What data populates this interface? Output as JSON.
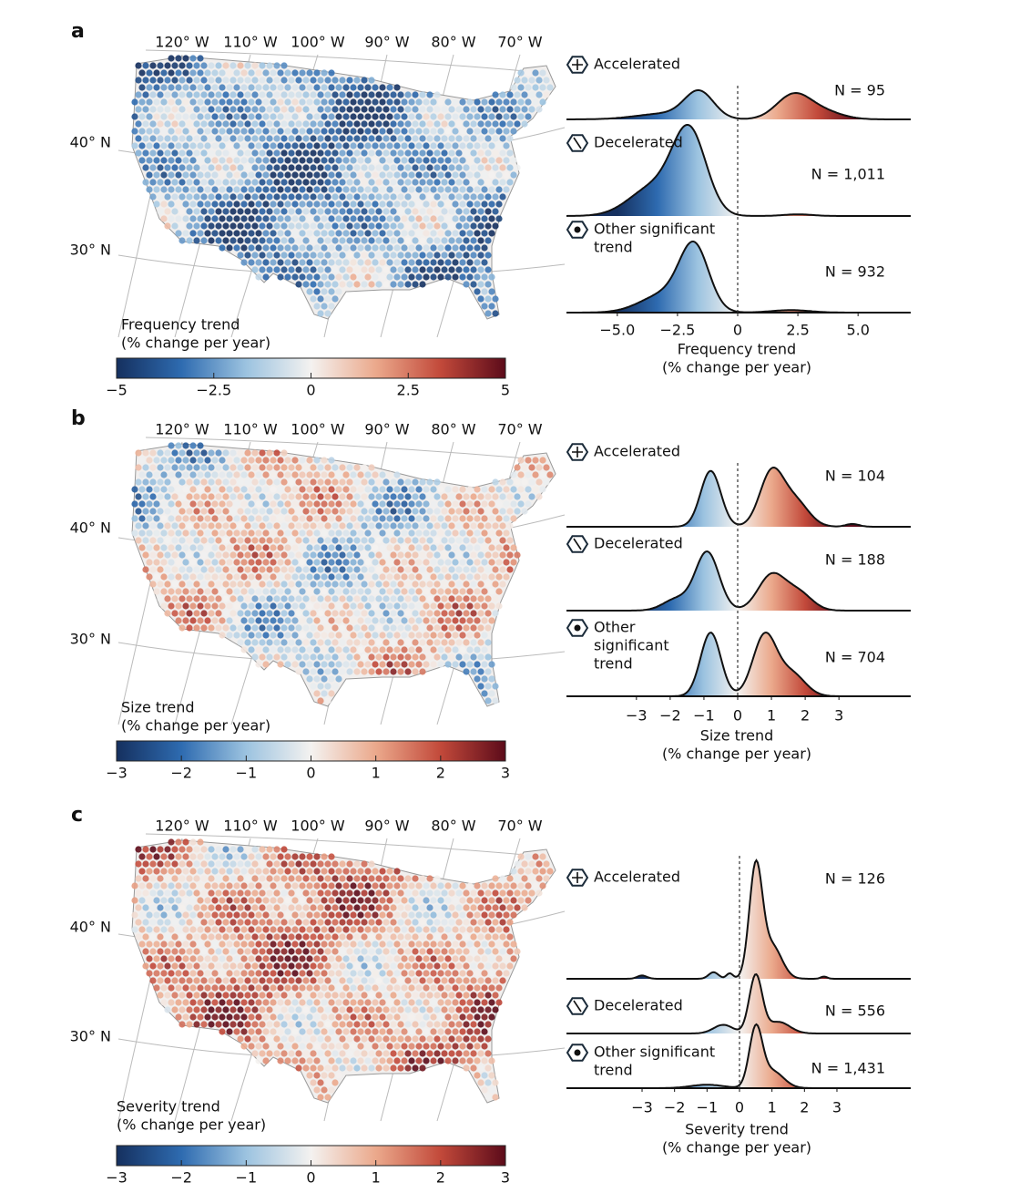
{
  "panels": [
    {
      "label": "a",
      "longitudes": [
        "120° W",
        "110° W",
        "100° W",
        "90° W",
        "80° W",
        "70° W"
      ],
      "latitudes": [
        "40° N",
        "30° N"
      ],
      "colorbar": {
        "title": [
          "Frequency trend",
          "(% change per year)"
        ],
        "lim": [
          -5,
          5
        ],
        "ticks": [
          {
            "value": -5,
            "label": "−5"
          },
          {
            "value": -2.5,
            "label": "−2.5"
          },
          0,
          2.5,
          5
        ]
      },
      "density": {
        "xlim": [
          -7.1,
          7.2
        ],
        "xlabel": [
          "Frequency trend",
          "(% change per year)"
        ],
        "xticks": [
          {
            "value": -5,
            "label": "−5.0"
          },
          {
            "value": -2.5,
            "label": "−2.5"
          },
          0,
          2.5,
          {
            "value": 5,
            "label": "5.0"
          }
        ],
        "groups": [
          {
            "name": [
              "Accelerated"
            ],
            "n": "N = 95"
          },
          {
            "name": [
              "Decelerated"
            ],
            "n": "N = 1,011"
          },
          {
            "name": [
              "Other significant",
              "trend"
            ],
            "n": "N = 932"
          }
        ]
      }
    },
    {
      "label": "b",
      "longitudes": [
        "120° W",
        "110° W",
        "100° W",
        "90° W",
        "80° W",
        "70° W"
      ],
      "latitudes": [
        "40° N",
        "30° N"
      ],
      "colorbar": {
        "title": [
          "Size trend",
          "(% change per year)"
        ],
        "lim": [
          -3,
          3
        ],
        "ticks": [
          {
            "value": -3,
            "label": "−3"
          },
          {
            "value": -2,
            "label": "−2"
          },
          {
            "value": -1,
            "label": "−1"
          },
          0,
          1,
          2,
          3
        ]
      },
      "density": {
        "xlim": [
          -5.1,
          5.1
        ],
        "xlabel": [
          "Size trend",
          "(% change per year)"
        ],
        "xticks": [
          {
            "value": -3,
            "label": "−3"
          },
          {
            "value": -2,
            "label": "−2"
          },
          {
            "value": -1,
            "label": "−1"
          },
          0,
          1,
          2,
          3
        ],
        "groups": [
          {
            "name": [
              "Accelerated"
            ],
            "n": "N = 104"
          },
          {
            "name": [
              "Decelerated"
            ],
            "n": "N = 188"
          },
          {
            "name": [
              "Other",
              "significant",
              "trend"
            ],
            "n": "N = 704"
          }
        ]
      }
    },
    {
      "label": "c",
      "longitudes": [
        "120° W",
        "110° W",
        "100° W",
        "90° W",
        "80° W",
        "70° W"
      ],
      "latitudes": [
        "40° N",
        "30° N"
      ],
      "colorbar": {
        "title": [
          "Severity trend",
          "(% change per year)"
        ],
        "lim": [
          -3,
          3
        ],
        "ticks": [
          {
            "value": -3,
            "label": "−3"
          },
          {
            "value": -2,
            "label": "−2"
          },
          {
            "value": -1,
            "label": "−1"
          },
          0,
          1,
          2,
          3
        ]
      },
      "density": {
        "xlim": [
          -5.3,
          5.3
        ],
        "xlabel": [
          "Severity trend",
          "(% change per year)"
        ],
        "xticks": [
          {
            "value": -3,
            "label": "−3"
          },
          {
            "value": -2,
            "label": "−2"
          },
          {
            "value": -1,
            "label": "−1"
          },
          0,
          1,
          2,
          3
        ],
        "groups": [
          {
            "name": [
              "Accelerated"
            ],
            "n": "N = 126"
          },
          {
            "name": [
              "Decelerated"
            ],
            "n": "N = 556"
          },
          {
            "name": [
              "Other significant",
              "trend"
            ],
            "n": "N = 1,431"
          }
        ]
      }
    }
  ]
}
